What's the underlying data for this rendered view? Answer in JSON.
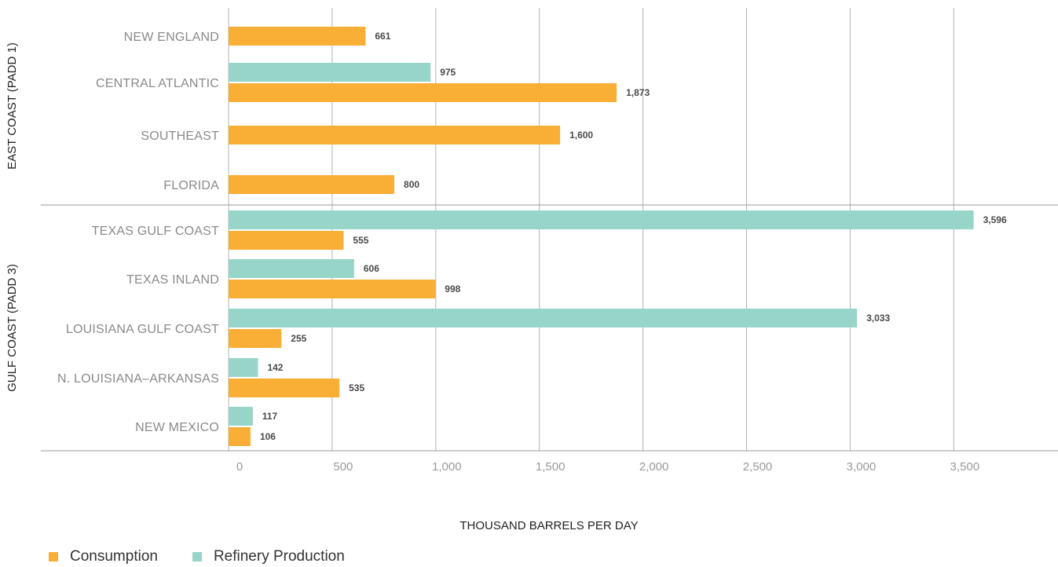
{
  "chart_data": {
    "type": "bar",
    "orientation": "horizontal",
    "xlabel": "THOUSAND BARRELS PER DAY",
    "xlim": [
      0,
      3900
    ],
    "xticks": [
      0,
      500,
      1000,
      1500,
      2000,
      2500,
      3000,
      3500
    ],
    "xtick_labels": [
      "0",
      "500",
      "1,000",
      "1,500",
      "2,000",
      "2,500",
      "3,000",
      "3,500"
    ],
    "grid": true,
    "legend_position": "bottom-left",
    "series": [
      {
        "name": "Consumption",
        "color": "#F9AE36"
      },
      {
        "name": "Refinery Production",
        "color": "#98D5C9"
      }
    ],
    "groups": [
      {
        "label": "EAST COAST (PADD 1)",
        "categories": [
          {
            "label": "NEW ENGLAND",
            "consumption": 661,
            "consumption_label": "661",
            "production": null,
            "production_label": ""
          },
          {
            "label": "CENTRAL ATLANTIC",
            "consumption": 1873,
            "consumption_label": "1,873",
            "production": 975,
            "production_label": "975"
          },
          {
            "label": "SOUTHEAST",
            "consumption": 1600,
            "consumption_label": "1,600",
            "production": null,
            "production_label": ""
          },
          {
            "label": "FLORIDA",
            "consumption": 800,
            "consumption_label": "800",
            "production": null,
            "production_label": ""
          }
        ]
      },
      {
        "label": "GULF COAST (PADD 3)",
        "categories": [
          {
            "label": "TEXAS GULF COAST",
            "consumption": 555,
            "consumption_label": "555",
            "production": 3596,
            "production_label": "3,596"
          },
          {
            "label": "TEXAS INLAND",
            "consumption": 998,
            "consumption_label": "998",
            "production": 606,
            "production_label": "606"
          },
          {
            "label": "LOUISIANA GULF COAST",
            "consumption": 255,
            "consumption_label": "255",
            "production": 3033,
            "production_label": "3,033"
          },
          {
            "label": "N. LOUISIANA–ARKANSAS",
            "consumption": 535,
            "consumption_label": "535",
            "production": 142,
            "production_label": "142"
          },
          {
            "label": "NEW MEXICO",
            "consumption": 106,
            "consumption_label": "106",
            "production": 117,
            "production_label": "117"
          }
        ]
      }
    ]
  }
}
